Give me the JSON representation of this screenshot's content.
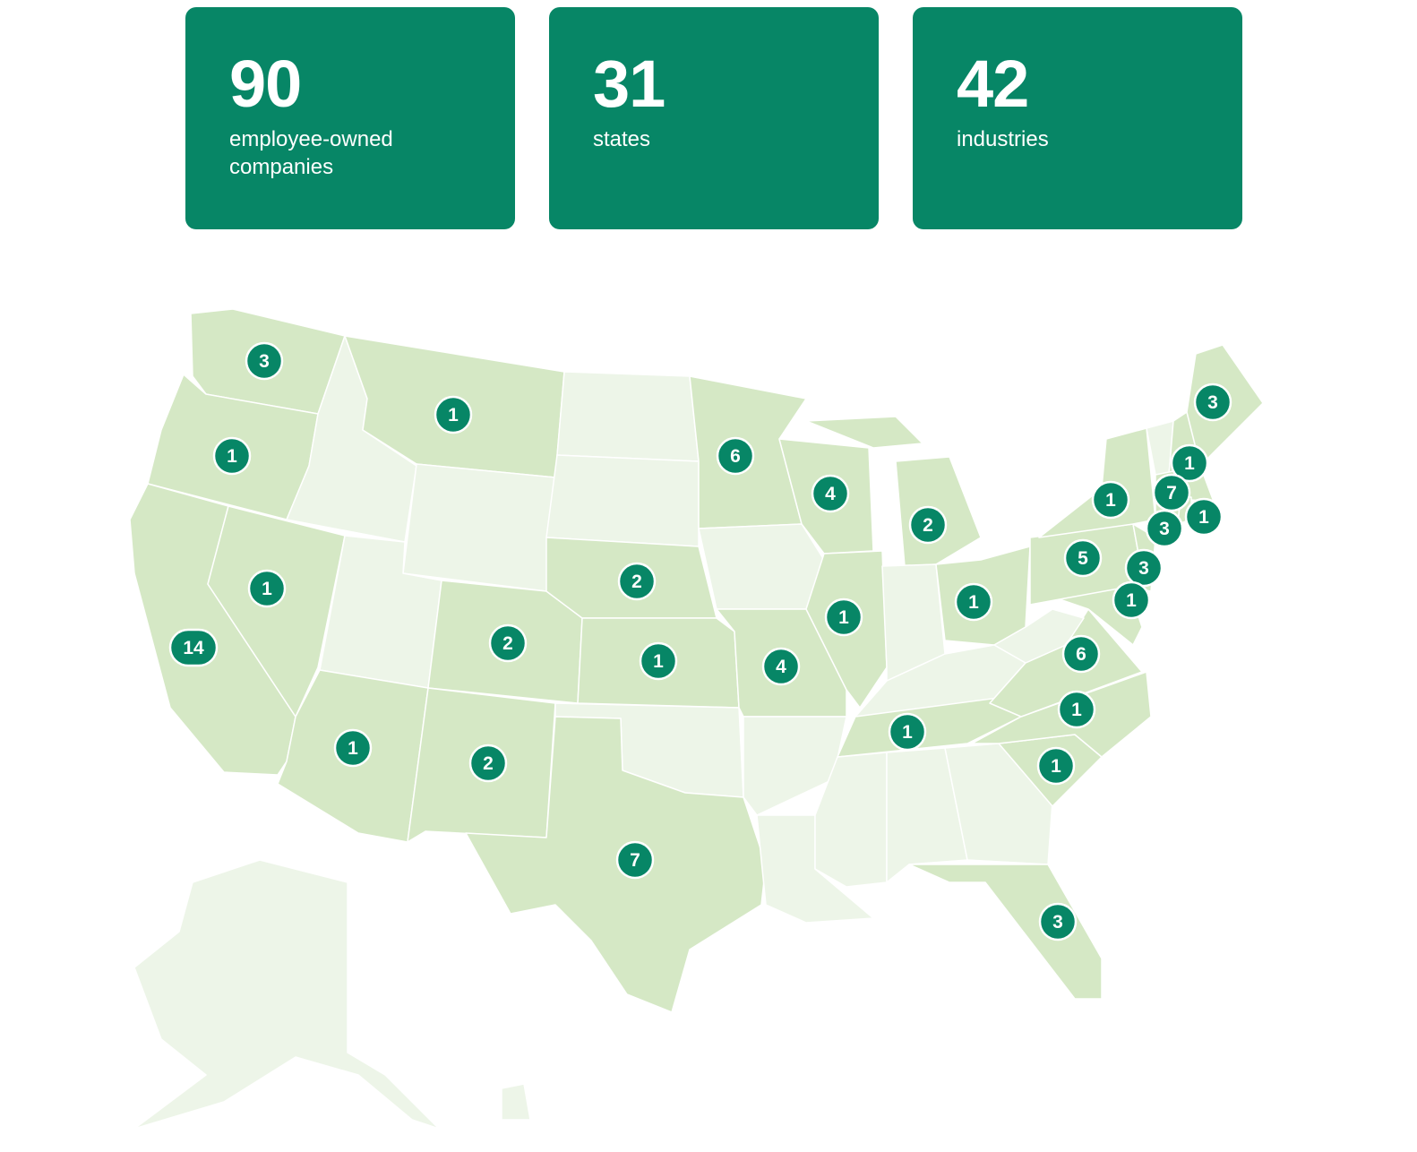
{
  "colors": {
    "brand": "#078666",
    "state_with_companies": "#d5e8c5",
    "state_without_companies": "#edf5e8",
    "border": "#ffffff"
  },
  "stats": [
    {
      "value": "90",
      "label": "employee-owned companies"
    },
    {
      "value": "31",
      "label": "states"
    },
    {
      "value": "42",
      "label": "industries"
    }
  ],
  "map": {
    "states_with_companies": [
      {
        "state": "WA",
        "count": 3
      },
      {
        "state": "OR",
        "count": 1
      },
      {
        "state": "CA",
        "count": 14
      },
      {
        "state": "NV",
        "count": 1
      },
      {
        "state": "MT",
        "count": 1
      },
      {
        "state": "AZ",
        "count": 1
      },
      {
        "state": "CO",
        "count": 2
      },
      {
        "state": "NM",
        "count": 2
      },
      {
        "state": "NE",
        "count": 2
      },
      {
        "state": "KS",
        "count": 1
      },
      {
        "state": "TX",
        "count": 7
      },
      {
        "state": "MN",
        "count": 6
      },
      {
        "state": "WI",
        "count": 4
      },
      {
        "state": "MI",
        "count": 2
      },
      {
        "state": "IL",
        "count": 1
      },
      {
        "state": "MO",
        "count": 4
      },
      {
        "state": "OH",
        "count": 1
      },
      {
        "state": "TN",
        "count": 1
      },
      {
        "state": "PA",
        "count": 5
      },
      {
        "state": "NY",
        "count": 1
      },
      {
        "state": "NH",
        "count": 1
      },
      {
        "state": "MA",
        "count": 7
      },
      {
        "state": "CT",
        "count": 3
      },
      {
        "state": "RI",
        "count": 1
      },
      {
        "state": "NJ",
        "count": 3
      },
      {
        "state": "MD",
        "count": 1
      },
      {
        "state": "VA",
        "count": 6
      },
      {
        "state": "NC",
        "count": 1
      },
      {
        "state": "SC",
        "count": 1
      },
      {
        "state": "FL",
        "count": 3
      },
      {
        "state": "ME",
        "count": 3
      }
    ]
  }
}
